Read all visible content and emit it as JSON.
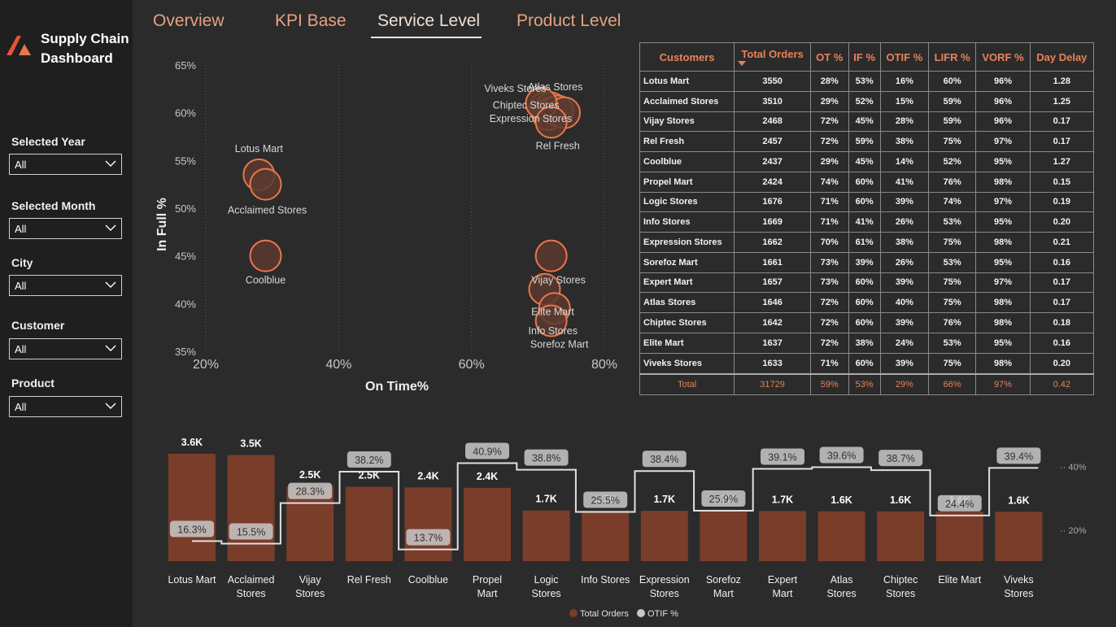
{
  "app": {
    "title_line1": "Supply Chain",
    "title_line2": "Dashboard"
  },
  "tabs": [
    {
      "label": "Overview"
    },
    {
      "label": "KPI Base"
    },
    {
      "label": "Service Level"
    },
    {
      "label": "Product Level"
    }
  ],
  "active_tab": "Service Level",
  "filters": [
    {
      "label": "Selected Year",
      "value": "All"
    },
    {
      "label": "Selected Month",
      "value": "All"
    },
    {
      "label": "City",
      "value": "All"
    },
    {
      "label": "Customer",
      "value": "All"
    },
    {
      "label": "Product",
      "value": "All"
    }
  ],
  "colors": {
    "accent": "#e8825a",
    "bubble_fill": "#5a3a30",
    "bubble_stroke": "#e8774a",
    "bar": "#7a3d2a",
    "line": "#e0e0e0"
  },
  "table": {
    "headers": [
      "Customers",
      "Total Orders",
      "OT %",
      "IF %",
      "OTIF %",
      "LIFR %",
      "VORF %",
      "Day Delay"
    ],
    "rows": [
      [
        "Lotus Mart",
        "3550",
        "28%",
        "53%",
        "16%",
        "60%",
        "96%",
        "1.28"
      ],
      [
        "Acclaimed Stores",
        "3510",
        "29%",
        "52%",
        "15%",
        "59%",
        "96%",
        "1.25"
      ],
      [
        "Vijay Stores",
        "2468",
        "72%",
        "45%",
        "28%",
        "59%",
        "96%",
        "0.17"
      ],
      [
        "Rel Fresh",
        "2457",
        "72%",
        "59%",
        "38%",
        "75%",
        "97%",
        "0.17"
      ],
      [
        "Coolblue",
        "2437",
        "29%",
        "45%",
        "14%",
        "52%",
        "95%",
        "1.27"
      ],
      [
        "Propel Mart",
        "2424",
        "74%",
        "60%",
        "41%",
        "76%",
        "98%",
        "0.15"
      ],
      [
        "Logic Stores",
        "1676",
        "71%",
        "60%",
        "39%",
        "74%",
        "97%",
        "0.19"
      ],
      [
        "Info Stores",
        "1669",
        "71%",
        "41%",
        "26%",
        "53%",
        "95%",
        "0.20"
      ],
      [
        "Expression Stores",
        "1662",
        "70%",
        "61%",
        "38%",
        "75%",
        "98%",
        "0.21"
      ],
      [
        "Sorefoz Mart",
        "1661",
        "73%",
        "39%",
        "26%",
        "53%",
        "95%",
        "0.16"
      ],
      [
        "Expert Mart",
        "1657",
        "73%",
        "60%",
        "39%",
        "75%",
        "97%",
        "0.17"
      ],
      [
        "Atlas Stores",
        "1646",
        "72%",
        "60%",
        "40%",
        "75%",
        "98%",
        "0.17"
      ],
      [
        "Chiptec Stores",
        "1642",
        "72%",
        "60%",
        "39%",
        "76%",
        "98%",
        "0.18"
      ],
      [
        "Elite Mart",
        "1637",
        "72%",
        "38%",
        "24%",
        "53%",
        "95%",
        "0.16"
      ],
      [
        "Viveks Stores",
        "1633",
        "71%",
        "60%",
        "39%",
        "75%",
        "98%",
        "0.20"
      ]
    ],
    "total": [
      "Total",
      "31729",
      "59%",
      "53%",
      "29%",
      "66%",
      "97%",
      "0.42"
    ]
  },
  "chart_data": [
    {
      "type": "scatter",
      "xlabel": "On Time%",
      "ylabel": "In Full %",
      "xlim": [
        20,
        80
      ],
      "ylim": [
        35,
        65
      ],
      "x_ticks": [
        "20%",
        "40%",
        "60%",
        "80%"
      ],
      "y_ticks": [
        "65%",
        "60%",
        "55%",
        "50%",
        "45%",
        "40%",
        "35%"
      ],
      "points": [
        {
          "name": "Lotus Mart",
          "x": 28,
          "y": 53.5
        },
        {
          "name": "Acclaimed Stores",
          "x": 29,
          "y": 52.5
        },
        {
          "name": "Coolblue",
          "x": 29,
          "y": 45
        },
        {
          "name": "Viveks Stores",
          "x": 71,
          "y": 60.5
        },
        {
          "name": "Atlas Stores",
          "x": 72,
          "y": 60.5
        },
        {
          "name": "Chiptec Stores",
          "x": 72,
          "y": 60
        },
        {
          "name": "Logic Stores",
          "x": 71.5,
          "y": 59.8
        },
        {
          "name": "Expert Mart",
          "x": 73,
          "y": 60.2
        },
        {
          "name": "Propel Mart",
          "x": 74,
          "y": 60
        },
        {
          "name": "Expression Stores",
          "x": 70.5,
          "y": 61
        },
        {
          "name": "Rel Fresh",
          "x": 72,
          "y": 59
        },
        {
          "name": "Vijay Stores",
          "x": 72,
          "y": 45
        },
        {
          "name": "Elite Mart",
          "x": 71,
          "y": 41.5
        },
        {
          "name": "Info Stores",
          "x": 72.5,
          "y": 39.5
        },
        {
          "name": "Sorefoz Mart",
          "x": 72,
          "y": 38.2
        }
      ],
      "labels": [
        {
          "text": "Lotus Mart",
          "for": "Lotus Mart"
        },
        {
          "text": "Acclaimed Stores",
          "for": "Acclaimed Stores"
        },
        {
          "text": "Coolblue",
          "for": "Coolblue"
        },
        {
          "text": "Viveks Stores",
          "for": "Viveks Stores"
        },
        {
          "text": "Atlas Stores",
          "for": "Atlas Stores"
        },
        {
          "text": "Chiptec Stores",
          "for": "Chiptec Stores"
        },
        {
          "text": "Expression Stores",
          "for": "Expression Stores"
        },
        {
          "text": "Rel Fresh",
          "for": "Rel Fresh"
        },
        {
          "text": "Vijay Stores",
          "for": "Vijay Stores"
        },
        {
          "text": "Elite Mart",
          "for": "Elite Mart"
        },
        {
          "text": "Info Stores",
          "for": "Info Stores"
        },
        {
          "text": "Sorefoz Mart",
          "for": "Sorefoz Mart"
        }
      ]
    },
    {
      "type": "bar",
      "categories": [
        "Lotus Mart",
        "Acclaimed Stores",
        "Vijay Stores",
        "Rel Fresh",
        "Coolblue",
        "Propel Mart",
        "Logic Stores",
        "Info Stores",
        "Expression Stores",
        "Sorefoz Mart",
        "Expert Mart",
        "Atlas Stores",
        "Chiptec Stores",
        "Elite Mart",
        "Viveks Stores"
      ],
      "series": [
        {
          "name": "Total Orders",
          "values": [
            3550,
            3510,
            2468,
            2457,
            2437,
            2424,
            1676,
            1669,
            1662,
            1661,
            1657,
            1646,
            1642,
            1637,
            1633
          ],
          "labels": [
            "3.6K",
            "3.5K",
            "2.5K",
            "2.5K",
            "2.4K",
            "2.4K",
            "1.7K",
            "1.7K",
            "1.7K",
            "1.7K",
            "1.7K",
            "1.6K",
            "1.6K",
            "1.6K",
            "1.6K"
          ]
        },
        {
          "name": "OTIF %",
          "values": [
            16.3,
            15.5,
            28.3,
            38.2,
            13.7,
            40.9,
            38.8,
            25.5,
            38.4,
            25.9,
            39.1,
            39.6,
            38.7,
            24.4,
            39.4
          ],
          "labels": [
            "16.3%",
            "15.5%",
            "28.3%",
            "38.2%",
            "13.7%",
            "40.9%",
            "38.8%",
            "25.5%",
            "38.4%",
            "25.9%",
            "39.1%",
            "39.6%",
            "38.7%",
            "24.4%",
            "39.4%"
          ]
        }
      ],
      "y2_ticks": [
        "40%",
        "20%"
      ],
      "legend": [
        "Total Orders",
        "OTIF %"
      ]
    }
  ]
}
